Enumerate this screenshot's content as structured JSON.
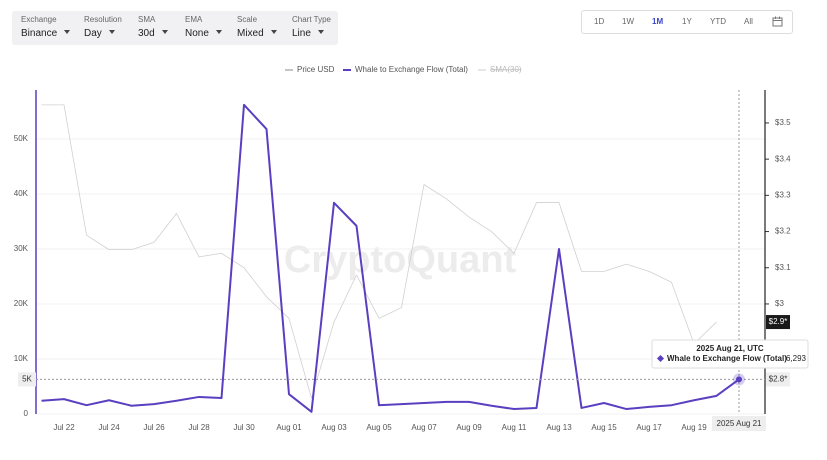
{
  "toolbar": {
    "controls": [
      {
        "label": "Exchange",
        "value": "Binance"
      },
      {
        "label": "Resolution",
        "value": "Day"
      },
      {
        "label": "SMA",
        "value": "30d"
      },
      {
        "label": "EMA",
        "value": "None"
      },
      {
        "label": "Scale",
        "value": "Mixed"
      },
      {
        "label": "Chart Type",
        "value": "Line"
      }
    ],
    "ranges": [
      "1D",
      "1W",
      "1M",
      "1Y",
      "YTD",
      "All"
    ],
    "active_range": "1M"
  },
  "chart_data": {
    "type": "line",
    "watermark": "CryptoQuant",
    "categories": [
      null,
      "Jul 22",
      null,
      "Jul 24",
      null,
      "Jul 26",
      null,
      "Jul 28",
      null,
      "Jul 30",
      null,
      "Aug 01",
      null,
      "Aug 03",
      null,
      "Aug 05",
      null,
      "Aug 07",
      null,
      "Aug 09",
      null,
      "Aug 11",
      null,
      "Aug 13",
      null,
      "Aug 15",
      null,
      "Aug 17",
      null,
      "Aug 19",
      null,
      null
    ],
    "series": [
      {
        "name": "Price USD",
        "color": "#d0d0d0",
        "legend_color": "#888888",
        "axis": "y2",
        "values": [
          3.55,
          3.55,
          3.19,
          3.15,
          3.15,
          3.17,
          3.25,
          3.13,
          3.14,
          3.1,
          3.02,
          2.96,
          2.74,
          2.95,
          3.08,
          2.96,
          2.99,
          3.33,
          3.29,
          3.24,
          3.2,
          3.14,
          3.28,
          3.28,
          3.09,
          3.09,
          3.11,
          3.09,
          3.06,
          2.89,
          2.95,
          null
        ]
      },
      {
        "name": "Whale to Exchange Flow (Total)",
        "color": "#5a3fc0",
        "values": [
          2400,
          2700,
          1600,
          2500,
          1500,
          1800,
          2400,
          3100,
          2900,
          56200,
          51800,
          3600,
          400,
          38400,
          34200,
          1600,
          1800,
          2000,
          2200,
          2200,
          1500,
          900,
          1100,
          30000,
          1100,
          2000,
          900,
          1300,
          1600,
          2500,
          3300,
          6293
        ],
        "value_labels": [
          null,
          null,
          null,
          null,
          null,
          null,
          null,
          null,
          null,
          null,
          null,
          null,
          null,
          null,
          null,
          null,
          null,
          null,
          null,
          null,
          null,
          null,
          null,
          null,
          null,
          null,
          null,
          null,
          null,
          null,
          null,
          "6,293"
        ]
      },
      {
        "name": "SMA(30)",
        "color": "#cccccc",
        "hidden": true
      }
    ],
    "ylim": [
      0,
      58900
    ],
    "yticks": [
      0,
      {
        "value": 10000,
        "label": "10K"
      },
      {
        "value": 20000,
        "label": "20K"
      },
      {
        "value": 30000,
        "label": "30K"
      },
      {
        "value": 40000,
        "label": "40K"
      },
      {
        "value": 50000,
        "label": "50K"
      }
    ],
    "y2lim": [
      2.696,
      3.591
    ],
    "y2ticks": [
      {
        "value": 3,
        "label": "$3"
      },
      {
        "value": 3.1,
        "label": "$3.1"
      },
      {
        "value": 3.2,
        "label": "$3.2"
      },
      {
        "value": 3.3,
        "label": "$3.3"
      },
      {
        "value": 3.4,
        "label": "$3.4"
      },
      {
        "value": 3.5,
        "label": "$3.5"
      }
    ],
    "grid": true,
    "last_price_label": "$2.9*",
    "crosshair": {
      "x_label": "2025 Aug 21",
      "y_label": "5K",
      "y2_label": "$2.8*"
    },
    "tooltip": {
      "title": "2025 Aug 21, UTC"
    }
  }
}
